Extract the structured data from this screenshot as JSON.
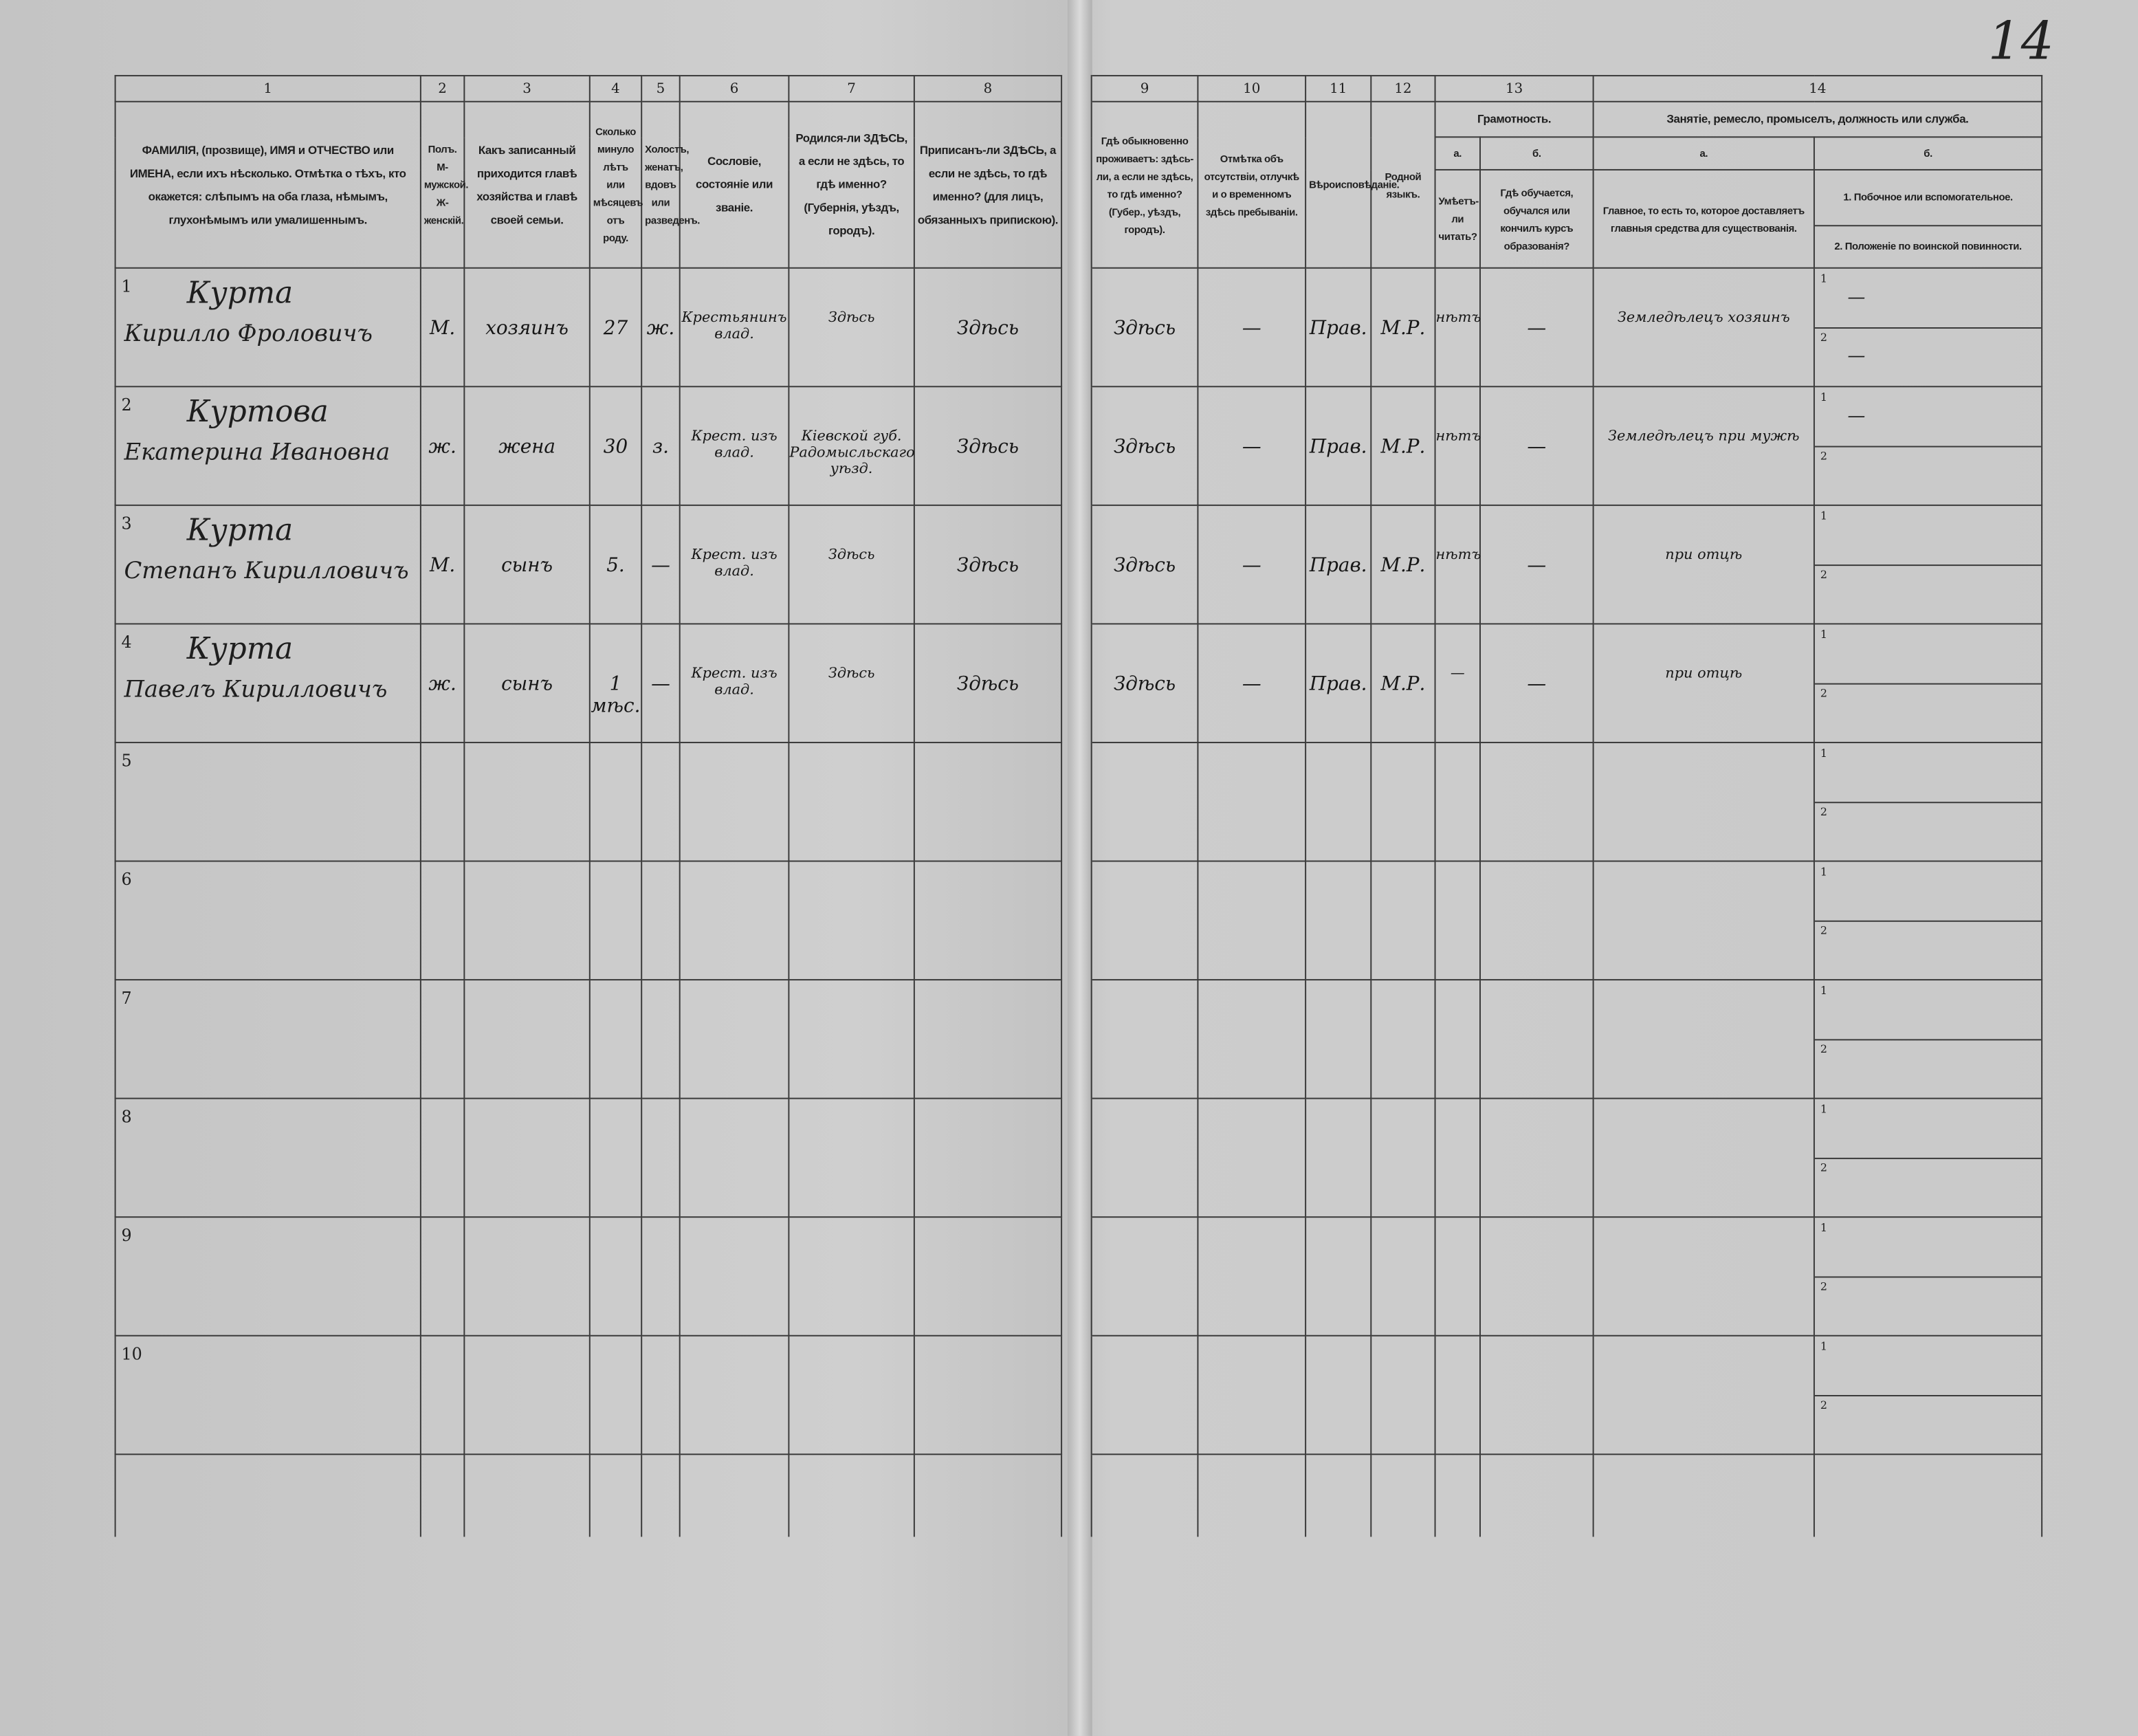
{
  "page_number": "14",
  "columns": {
    "numbers": [
      "1",
      "2",
      "3",
      "4",
      "5",
      "6",
      "7",
      "8",
      "9",
      "10",
      "11",
      "12",
      "13",
      "14"
    ],
    "c1": "ФАМИЛІЯ, (прозвище), ИМЯ и ОТЧЕСТВО или ИМЕНА, если ихъ нѣсколько. Отмѣтка о тѣхъ, кто окажется: слѣпымъ на оба глаза, нѣмымъ, глухонѣмымъ или умалишеннымъ.",
    "c2": "Полъ. М-мужской. Ж-женскій.",
    "c3": "Какъ записанный приходится главѣ хозяйства и главѣ своей семьи.",
    "c4": "Сколько минуло лѣтъ или мѣсяцевъ отъ роду.",
    "c5": "Холостъ, женатъ, вдовъ или разведенъ.",
    "c6": "Сословіе, состояніе или званіе.",
    "c7": "Родился-ли ЗДѢСЬ, а если не здѣсь, то гдѣ именно? (Губернія, уѣздъ, городъ).",
    "c8": "Приписанъ-ли ЗДѢСЬ, а если не здѣсь, то гдѣ именно? (для лицъ, обязанныхъ припискою).",
    "c9": "Гдѣ обыкновенно проживаетъ: здѣсь-ли, а если не здѣсь, то гдѣ именно? (Губер., уѣздъ, городъ).",
    "c10": "Отмѣтка объ отсутствіи, отлучкѣ и о временномъ здѣсь пребываніи.",
    "c11": "Вѣроисповѣданіе.",
    "c12": "Родной языкъ.",
    "c13": "Грамотность.",
    "c13a_letter": "а.",
    "c13b_letter": "б.",
    "c13a": "Умѣетъ-ли читать?",
    "c13b": "Гдѣ обучается, обучался или кончилъ курсъ образованія?",
    "c14": "Занятіе, ремесло, промыселъ, должность или служба.",
    "c14a_letter": "а.",
    "c14b_letter": "б.",
    "c14a": "Главное, то есть то, которое доставляетъ главныя средства для существованія.",
    "c14b_1": "1. Побочное или вспомогательное.",
    "c14b_2": "2. Положеніе по воинской повинности."
  },
  "sub_labels": [
    "1",
    "2"
  ],
  "rows": [
    {
      "no": "1",
      "surname": "Курта",
      "given": "Кирилло Фроловичъ",
      "sex": "М.",
      "relation": "хозяинъ",
      "age": "27",
      "marital": "ж.",
      "estate": "Крестьянинъ влад.",
      "born": "Здѣсь",
      "registered": "Здѣсь",
      "resides": "Здѣсь",
      "absence": "—",
      "religion": "Прав.",
      "language": "М.Р.",
      "literate": "нѣтъ",
      "school": "—",
      "occupation": "Земледѣлецъ хозяинъ",
      "side": "—",
      "military": "—"
    },
    {
      "no": "2",
      "surname": "Куртова",
      "given": "Екатерина Ивановна",
      "sex": "ж.",
      "relation": "жена",
      "age": "30",
      "marital": "з.",
      "estate": "Крест. изъ влад.",
      "born": "Кіевской губ. Радомысльскаго уѣзд.",
      "registered": "Здѣсь",
      "resides": "Здѣсь",
      "absence": "—",
      "religion": "Прав.",
      "language": "М.Р.",
      "literate": "нѣтъ",
      "school": "—",
      "occupation": "Земледѣлецъ при мужѣ",
      "side": "—",
      "military": ""
    },
    {
      "no": "3",
      "surname": "Курта",
      "given": "Степанъ Кирилловичъ",
      "sex": "М.",
      "relation": "сынъ",
      "age": "5.",
      "marital": "—",
      "estate": "Крест. изъ влад.",
      "born": "Здѣсь",
      "registered": "Здѣсь",
      "resides": "Здѣсь",
      "absence": "—",
      "religion": "Прав.",
      "language": "М.Р.",
      "literate": "нѣтъ",
      "school": "—",
      "occupation": "при отцѣ",
      "side": "",
      "military": ""
    },
    {
      "no": "4",
      "surname": "Курта",
      "given": "Павелъ Кирилловичъ",
      "sex": "ж.",
      "relation": "сынъ",
      "age": "1 мѣс.",
      "marital": "—",
      "estate": "Крест. изъ влад.",
      "born": "Здѣсь",
      "registered": "Здѣсь",
      "resides": "Здѣсь",
      "absence": "—",
      "religion": "Прав.",
      "language": "М.Р.",
      "literate": "—",
      "school": "—",
      "occupation": "при отцѣ",
      "side": "",
      "military": ""
    },
    {
      "no": "5"
    },
    {
      "no": "6"
    },
    {
      "no": "7"
    },
    {
      "no": "8"
    },
    {
      "no": "9"
    },
    {
      "no": "10"
    }
  ]
}
